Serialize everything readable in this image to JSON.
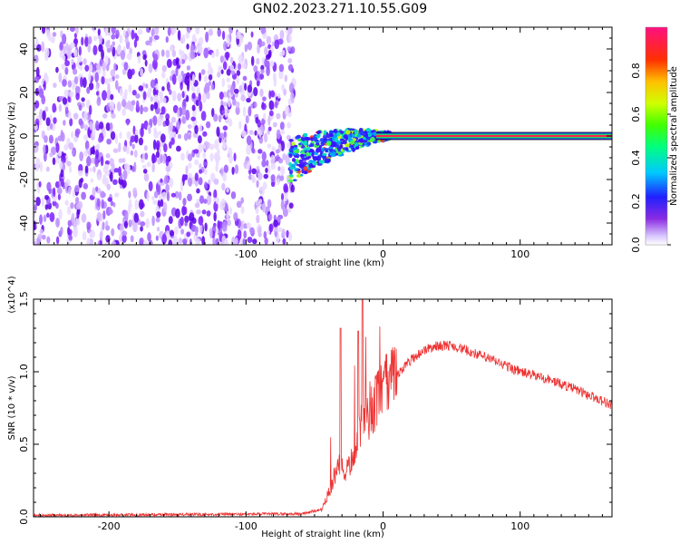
{
  "title": "GN02.2023.271.10.55.G09",
  "chart_data": [
    {
      "type": "heatmap",
      "xlabel": "Height of straight line (km)",
      "ylabel": "Frequency (Hz)",
      "xlim": [
        -255,
        167
      ],
      "ylim": [
        -50,
        50
      ],
      "xticks": [
        -200,
        -100,
        0,
        100
      ],
      "yticks": [
        -40,
        -20,
        0,
        20,
        40
      ],
      "grid": false,
      "description_points": {
        "noise_region_x": [
          -255,
          -68
        ],
        "transition_region_x": [
          -68,
          5
        ],
        "tone_region_x": [
          5,
          167
        ],
        "tone_frequency": 0
      },
      "colorbar": {
        "label": "Normalized spectral amplitude",
        "range": [
          0.0,
          1.0
        ],
        "ticks": [
          "0.0",
          "0.2",
          "0.4",
          "0.6",
          "0.8"
        ]
      }
    },
    {
      "type": "line",
      "xlabel": "Height of straight line (km)",
      "ylabel": "SNR (10 * v/v)",
      "yscale_label": "(x10^4)",
      "xlim": [
        -255,
        167
      ],
      "ylim": [
        0,
        1.5
      ],
      "xticks": [
        -200,
        -100,
        0,
        100
      ],
      "yticks": [
        "0.0",
        "0.5",
        "1.0",
        "1.5"
      ],
      "color": "#ee3333",
      "grid": false,
      "envelope": {
        "x": [
          -255,
          -60,
          -45,
          -38,
          -32,
          -28,
          -22,
          -18,
          -14,
          -10,
          -5,
          0,
          10,
          20,
          30,
          40,
          50,
          60,
          80,
          100,
          120,
          140,
          160,
          167
        ],
        "y": [
          0.01,
          0.02,
          0.05,
          0.2,
          0.35,
          0.3,
          0.4,
          0.6,
          0.65,
          0.7,
          0.8,
          0.88,
          0.98,
          1.08,
          1.15,
          1.18,
          1.18,
          1.15,
          1.08,
          1.0,
          0.95,
          0.88,
          0.8,
          0.77
        ]
      }
    }
  ]
}
